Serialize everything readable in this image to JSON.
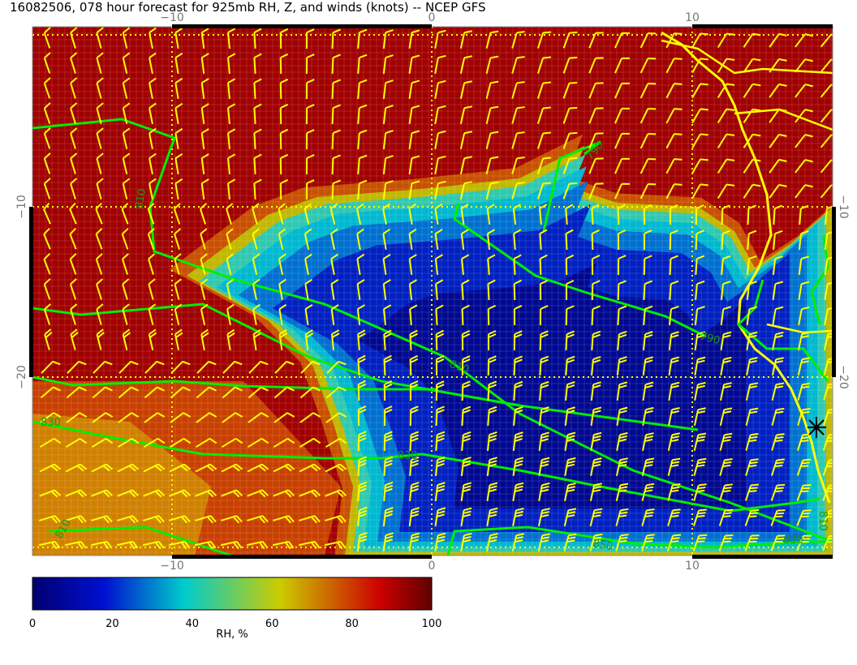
{
  "title": "16082506, 078 hour forecast for 925mb RH, Z, and winds (knots) -- NCEP GFS",
  "axes": {
    "lon_ticks": [
      "−10",
      "0",
      "10"
    ],
    "lat_ticks": [
      "−10",
      "−20"
    ]
  },
  "colorbar": {
    "label": "RH, %",
    "ticks": [
      "0",
      "20",
      "40",
      "60",
      "80",
      "100"
    ],
    "colors": [
      "#000070",
      "#0010d0",
      "#00cccc",
      "#cccc00",
      "#cc0000",
      "#600000"
    ]
  },
  "contour_labels": [
    "810",
    "790",
    "810",
    "830",
    "850",
    "830",
    "790",
    "810",
    "830",
    "810"
  ],
  "colors": {
    "contour": "#00ee00",
    "wind_barbs": "#ffff00",
    "coastline": "#ffff00"
  }
}
